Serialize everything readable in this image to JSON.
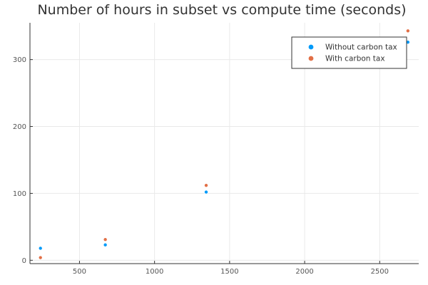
{
  "chart_data": {
    "type": "scatter",
    "title": "Number of hours in subset vs compute time (seconds)",
    "xlabel": "",
    "ylabel": "",
    "xlim": [
      170,
      2760
    ],
    "ylim": [
      -5,
      355
    ],
    "xticks": [
      500,
      1000,
      1500,
      2000,
      2500
    ],
    "yticks": [
      0,
      100,
      200,
      300
    ],
    "grid": true,
    "legend_position": "top-right",
    "series": [
      {
        "name": "Without carbon tax",
        "color": "#009af9",
        "points": [
          {
            "x": 240,
            "y": 18
          },
          {
            "x": 672,
            "y": 23
          },
          {
            "x": 1344,
            "y": 102
          },
          {
            "x": 2688,
            "y": 326
          }
        ]
      },
      {
        "name": "With carbon tax",
        "color": "#e26f46",
        "points": [
          {
            "x": 240,
            "y": 4
          },
          {
            "x": 672,
            "y": 31
          },
          {
            "x": 1344,
            "y": 112
          },
          {
            "x": 2688,
            "y": 343
          }
        ]
      }
    ]
  }
}
